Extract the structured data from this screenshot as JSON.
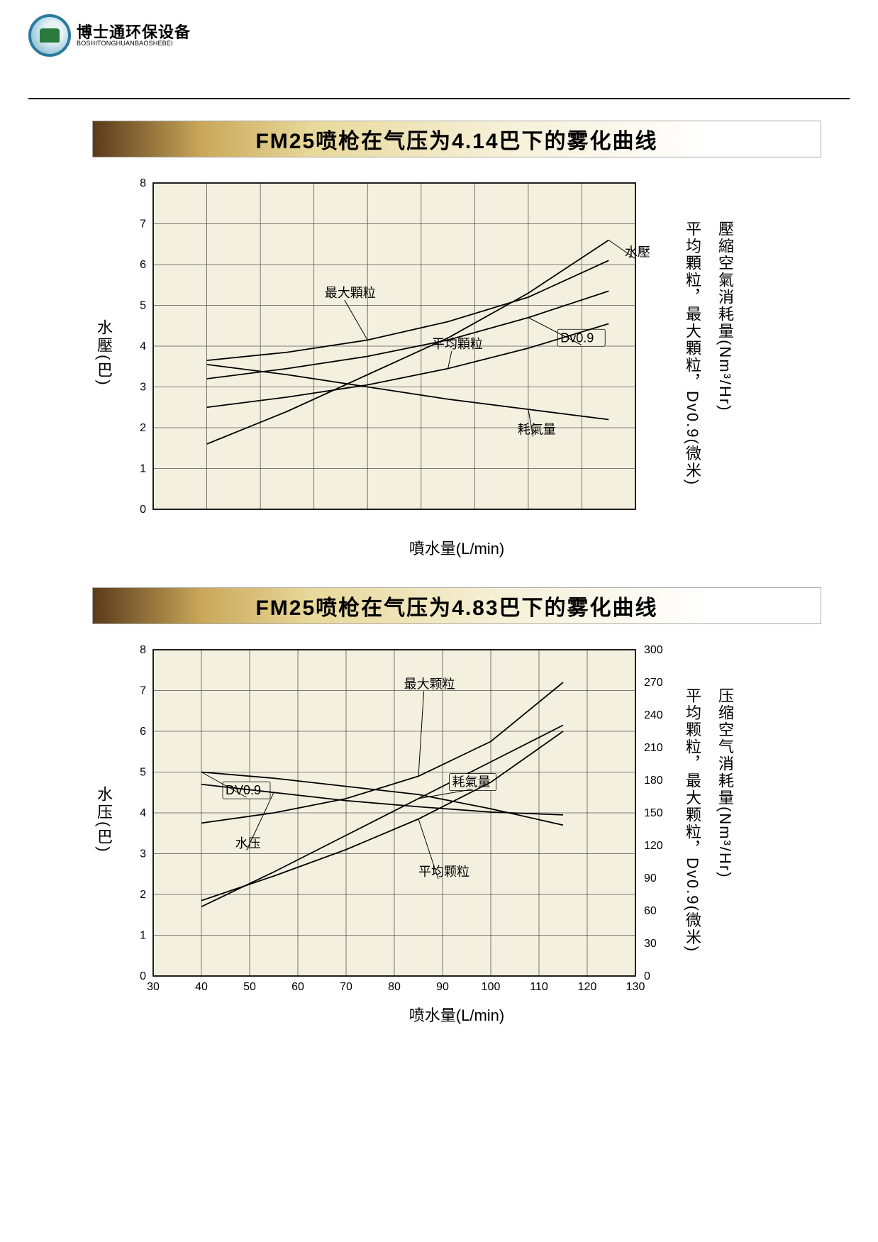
{
  "logo": {
    "cn": "博士通环保设备",
    "en": "BOSHITONGHUANBAOSHEBEI"
  },
  "charts": [
    {
      "title": "FM25喷枪在气压为4.14巴下的雾化曲线",
      "x_axis": {
        "label": "噴水量(L/min)",
        "min": 30,
        "max": 120,
        "ticks": null,
        "show_tick_labels": false
      },
      "y_left": {
        "label": "水壓(巴)",
        "min": 0,
        "max": 8,
        "ticks": [
          0,
          1,
          2,
          3,
          4,
          5,
          6,
          7,
          8
        ]
      },
      "y_right": {
        "labels": [
          "平均顆粒，最大顆粒，Dv0.9(微米)",
          "壓縮空氣消耗量(Nm³/Hr)"
        ],
        "min": 0,
        "max": 300,
        "ticks": null,
        "show_tick_labels": false
      },
      "plot_bg": "#f4f0e0",
      "grid_color": "#555555",
      "series": [
        {
          "name": "水壓",
          "axis": "left",
          "points": [
            [
              40,
              1.6
            ],
            [
              55,
              2.4
            ],
            [
              70,
              3.3
            ],
            [
              85,
              4.2
            ],
            [
              100,
              5.3
            ],
            [
              115,
              6.6
            ]
          ],
          "label_xy": [
            118,
            6.2
          ]
        },
        {
          "name": "最大顆粒",
          "axis": "left",
          "points": [
            [
              40,
              3.65
            ],
            [
              55,
              3.85
            ],
            [
              70,
              4.15
            ],
            [
              85,
              4.6
            ],
            [
              100,
              5.2
            ],
            [
              115,
              6.1
            ]
          ],
          "label_xy": [
            62,
            5.2
          ]
        },
        {
          "name": "Dv0.9",
          "axis": "left",
          "points": [
            [
              40,
              3.2
            ],
            [
              55,
              3.45
            ],
            [
              70,
              3.75
            ],
            [
              85,
              4.15
            ],
            [
              100,
              4.7
            ],
            [
              115,
              5.35
            ]
          ],
          "label_xy": [
            106,
            4.1
          ],
          "boxed": true
        },
        {
          "name": "平均顆粒",
          "axis": "left",
          "points": [
            [
              40,
              2.5
            ],
            [
              55,
              2.75
            ],
            [
              70,
              3.05
            ],
            [
              85,
              3.45
            ],
            [
              100,
              3.95
            ],
            [
              115,
              4.55
            ]
          ],
          "label_xy": [
            82,
            3.95
          ]
        },
        {
          "name": "耗氣量",
          "axis": "left",
          "points": [
            [
              40,
              3.55
            ],
            [
              55,
              3.3
            ],
            [
              70,
              3.0
            ],
            [
              85,
              2.7
            ],
            [
              100,
              2.45
            ],
            [
              115,
              2.2
            ]
          ],
          "label_xy": [
            98,
            1.85
          ]
        }
      ]
    },
    {
      "title": "FM25喷枪在气压为4.83巴下的雾化曲线",
      "x_axis": {
        "label": "喷水量(L/min)",
        "min": 30,
        "max": 130,
        "ticks": [
          30,
          40,
          50,
          60,
          70,
          80,
          90,
          100,
          110,
          120,
          130
        ],
        "show_tick_labels": true
      },
      "y_left": {
        "label": "水压(巴)",
        "min": 0,
        "max": 8,
        "ticks": [
          0,
          1,
          2,
          3,
          4,
          5,
          6,
          7,
          8
        ]
      },
      "y_right": {
        "labels": [
          "平均颗粒，最大颗粒，Dv0.9(微米)",
          "压缩空气消耗量(Nm³/Hr)"
        ],
        "min": 0,
        "max": 300,
        "ticks": [
          0,
          30,
          60,
          90,
          120,
          150,
          180,
          210,
          240,
          270,
          300
        ],
        "show_tick_labels": true
      },
      "plot_bg": "#f4f0e0",
      "grid_color": "#555555",
      "series": [
        {
          "name": "最大颗粒",
          "axis": "left",
          "points": [
            [
              40,
              3.75
            ],
            [
              55,
              4.0
            ],
            [
              70,
              4.35
            ],
            [
              85,
              4.9
            ],
            [
              100,
              5.75
            ],
            [
              115,
              7.2
            ]
          ],
          "label_xy": [
            82,
            7.05
          ]
        },
        {
          "name": "耗氣量",
          "axis": "left",
          "points": [
            [
              40,
              1.7
            ],
            [
              55,
              2.55
            ],
            [
              70,
              3.45
            ],
            [
              85,
              4.35
            ],
            [
              100,
              5.25
            ],
            [
              115,
              6.15
            ]
          ],
          "label_xy": [
            92,
            4.65
          ],
          "boxed": true
        },
        {
          "name": "DV0.9",
          "axis": "left",
          "points": [
            [
              40,
              5.0
            ],
            [
              55,
              4.85
            ],
            [
              70,
              4.65
            ],
            [
              85,
              4.45
            ],
            [
              100,
              4.1
            ],
            [
              115,
              3.7
            ]
          ],
          "label_xy": [
            45,
            4.45
          ],
          "boxed": true
        },
        {
          "name": "水压",
          "axis": "left",
          "points": [
            [
              40,
              4.7
            ],
            [
              55,
              4.5
            ],
            [
              70,
              4.3
            ],
            [
              85,
              4.15
            ],
            [
              100,
              4.02
            ],
            [
              115,
              3.95
            ]
          ],
          "label_xy": [
            47,
            3.15
          ]
        },
        {
          "name": "平均颗粒",
          "axis": "left",
          "points": [
            [
              40,
              1.85
            ],
            [
              55,
              2.45
            ],
            [
              70,
              3.1
            ],
            [
              85,
              3.85
            ],
            [
              100,
              4.75
            ],
            [
              115,
              6.0
            ]
          ],
          "label_xy": [
            85,
            2.45
          ]
        }
      ]
    }
  ],
  "colors": {
    "title_gradient_dark": "#5a3a1a",
    "title_gradient_gold": "#c9a85a",
    "title_gradient_cream": "#e8d89a",
    "line_color": "#000000"
  }
}
